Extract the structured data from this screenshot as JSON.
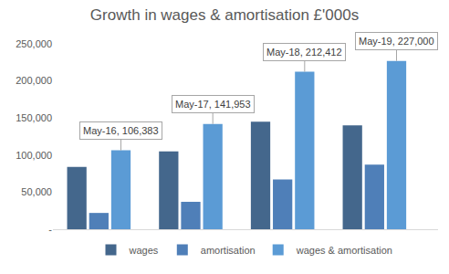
{
  "chart_data": {
    "type": "bar",
    "title": "Growth in wages & amortisation £'000s",
    "categories": [
      "May-16",
      "May-17",
      "May-18",
      "May-19"
    ],
    "series": [
      {
        "name": "wages",
        "color": "#44678c",
        "values": [
          84000,
          105000,
          145000,
          140000
        ]
      },
      {
        "name": "amortisation",
        "color": "#4f7fb8",
        "values": [
          22000,
          37000,
          67000,
          87000
        ]
      },
      {
        "name": "wages & amortisation",
        "color": "#5b9bd5",
        "values": [
          106383,
          141953,
          212412,
          227000
        ],
        "data_labels": true,
        "value_labels": [
          "May-16, 106,383",
          "May-17, 141,953",
          "May-18, 212,412",
          "May-19, 227,000"
        ]
      }
    ],
    "ylim": [
      0,
      250000
    ],
    "yticks": [
      {
        "value": 0,
        "label": "-"
      },
      {
        "value": 50000,
        "label": "50,000"
      },
      {
        "value": 100000,
        "label": "100,000"
      },
      {
        "value": 150000,
        "label": "150,000"
      },
      {
        "value": 200000,
        "label": "200,000"
      },
      {
        "value": 250000,
        "label": "250,000"
      }
    ],
    "grid": false,
    "legend": "bottom",
    "tick_labels": "y"
  }
}
